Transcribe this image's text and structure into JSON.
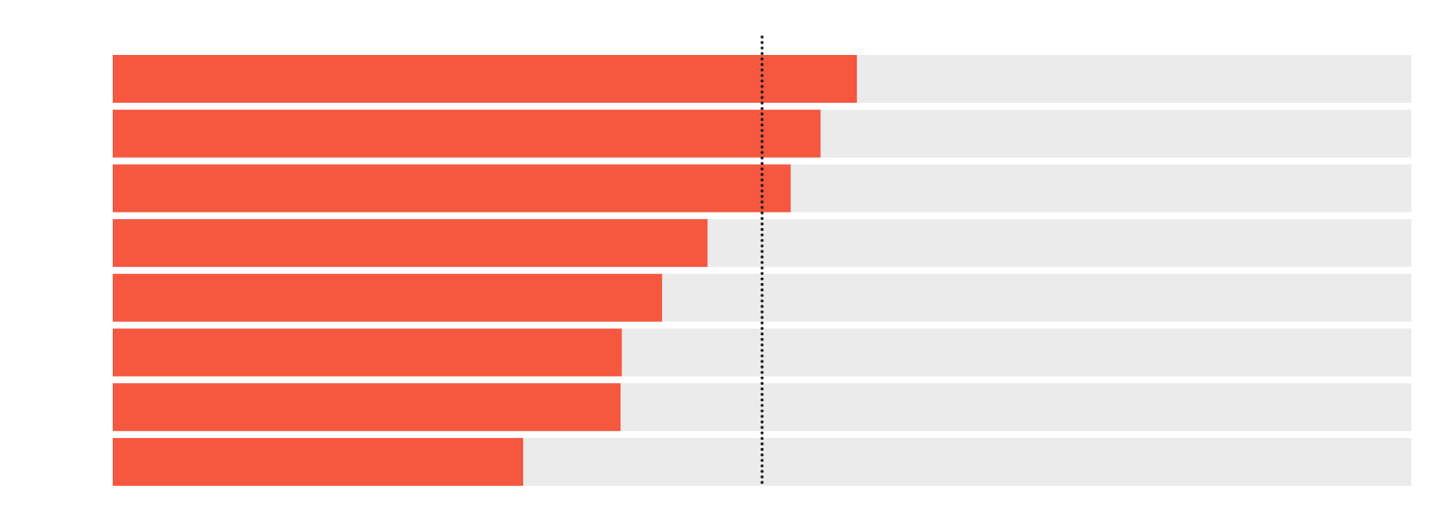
{
  "chart_data": {
    "type": "bar",
    "orientation": "horizontal",
    "title": "",
    "xlabel": "",
    "ylabel": "",
    "xlim": [
      0,
      1
    ],
    "grid": false,
    "legend": "none",
    "reference_line": {
      "value": 0.5,
      "style": "dotted"
    },
    "series": [
      {
        "values": [
          0.573,
          0.545,
          0.522,
          0.458,
          0.423,
          0.392,
          0.391,
          0.316
        ]
      }
    ],
    "colors": {
      "bar": "#f5573f",
      "track": "#ebebeb",
      "reference_line": "#1a1a1a"
    }
  }
}
